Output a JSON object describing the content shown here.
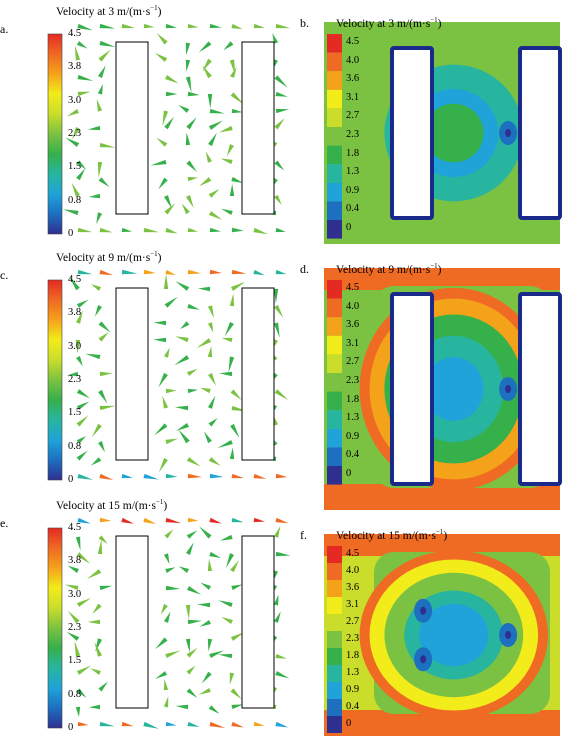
{
  "panels": [
    {
      "label": "a.",
      "title": "Velocity at 3 m/(m·s",
      "sup": "−1",
      "close": ")",
      "type": "vector",
      "speed": 3
    },
    {
      "label": "b.",
      "title": "Velocity at 3 m/(m·s",
      "sup": "−1",
      "close": ")",
      "type": "contour",
      "speed": 3
    },
    {
      "label": "c.",
      "title": "Velocity at 9 m/(m·s",
      "sup": "−1",
      "close": ")",
      "type": "vector",
      "speed": 9
    },
    {
      "label": "d.",
      "title": "Velocity at 9 m/(m·s",
      "sup": "−1",
      "close": ")",
      "type": "contour",
      "speed": 9
    },
    {
      "label": "e.",
      "title": "Velocity at 15 m/(m·s",
      "sup": "−1",
      "close": ")",
      "type": "vector",
      "speed": 15
    },
    {
      "label": "f.",
      "title": "Velocity at 15 m/(m·s",
      "sup": "−1",
      "close": ")",
      "type": "contour",
      "speed": 15
    }
  ],
  "legend_vector": [
    "4.5",
    "3.8",
    "3.0",
    "2.3",
    "1.5",
    "0.8",
    "0"
  ],
  "legend_contour": [
    "4.5",
    "4.0",
    "3.6",
    "3.1",
    "2.7",
    "2.3",
    "1.8",
    "1.3",
    "0.9",
    "0.4",
    "0"
  ],
  "colors": {
    "scale": [
      "#2e2f8f",
      "#1d6fc0",
      "#1fa3d8",
      "#27b5a0",
      "#36b04a",
      "#7cc242",
      "#c9dd2a",
      "#f2ec1a",
      "#f5a21b",
      "#ef6a23",
      "#e42a23"
    ],
    "building_border": "#1a2a8a"
  }
}
